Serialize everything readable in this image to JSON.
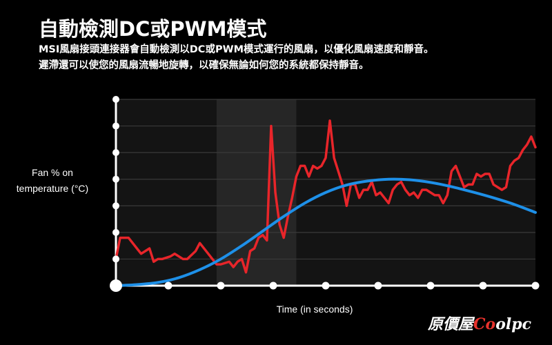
{
  "header": {
    "title": "自動檢測DC或PWM模式",
    "desc_line1": "MSI風扇接頭連接器會自動檢測以DC或PWM模式運行的風扇，以優化風扇速度和靜音。",
    "desc_line2": "遲滯還可以使您的風扇流暢地旋轉，以確保無論如何您的系統都保持靜音。"
  },
  "watermark": {
    "part1": "原價屋",
    "accent": "Co",
    "part2": "olpc"
  },
  "colors": {
    "background": "#000000",
    "temperature_line": "#e8252a",
    "fan_curve": "#1e90e8",
    "axis": "#ffffff",
    "grid": "#3a3a3a",
    "band_dark": "#141414",
    "band_light": "#262626",
    "watermark_accent": "#e8322c"
  },
  "chart_data": {
    "type": "line",
    "ylabel_line1": "Fan % on",
    "ylabel_line2": "temperature (°C)",
    "xlabel": "Time (in seconds)",
    "grid": true,
    "xlim": [
      0,
      100
    ],
    "ylim": [
      0,
      7
    ],
    "x_tick_count": 9,
    "y_tick_count": 7,
    "shaded_band_x": [
      24,
      43
    ],
    "series": [
      {
        "style": "jagged",
        "color": "#e8252a",
        "x": [
          0,
          1,
          3,
          5,
          6,
          8,
          9,
          10,
          11,
          13,
          14,
          16,
          17,
          19,
          20,
          22,
          23,
          24,
          25,
          27,
          28,
          29,
          30,
          31,
          32,
          33,
          34,
          35,
          36,
          37,
          38,
          39,
          40,
          41,
          42,
          43,
          44,
          45,
          46,
          47,
          48,
          49,
          50,
          51,
          52,
          53,
          54,
          55,
          56,
          57,
          58,
          59,
          60,
          61,
          62,
          63,
          64,
          65,
          66,
          67,
          68,
          69,
          70,
          71,
          72,
          73,
          74,
          75,
          76,
          77,
          78,
          79,
          80,
          81,
          82,
          83,
          84,
          85,
          86,
          87,
          88,
          89,
          90,
          91,
          92,
          93,
          94,
          95,
          96,
          97,
          98,
          99,
          100
        ],
        "y": [
          1.0,
          1.8,
          1.8,
          1.4,
          1.2,
          1.4,
          0.9,
          1.0,
          1.0,
          1.1,
          1.2,
          1.0,
          1.0,
          1.3,
          1.6,
          1.2,
          1.0,
          0.8,
          0.8,
          0.9,
          0.7,
          0.9,
          1.0,
          0.5,
          1.3,
          1.4,
          1.8,
          1.9,
          1.7,
          6.0,
          3.5,
          2.3,
          1.8,
          2.6,
          3.3,
          4.1,
          4.5,
          4.5,
          4.1,
          4.5,
          4.4,
          4.5,
          4.8,
          6.2,
          4.8,
          4.3,
          3.8,
          3.0,
          3.8,
          3.8,
          3.3,
          3.6,
          3.6,
          3.9,
          3.4,
          3.5,
          3.3,
          3.1,
          3.6,
          3.8,
          3.9,
          3.6,
          3.4,
          3.5,
          3.3,
          3.6,
          3.6,
          3.5,
          3.4,
          3.4,
          3.1,
          3.4,
          4.3,
          4.5,
          4.1,
          3.7,
          3.8,
          3.8,
          4.2,
          4.1,
          4.2,
          4.2,
          3.8,
          3.7,
          3.6,
          3.7,
          4.5,
          4.7,
          4.8,
          5.1,
          5.3,
          5.6,
          5.2
        ]
      },
      {
        "style": "smooth",
        "color": "#1e90e8",
        "x": [
          0,
          5,
          10,
          15,
          20,
          25,
          30,
          35,
          40,
          45,
          50,
          55,
          60,
          65,
          70,
          75,
          80,
          85,
          90,
          95,
          100
        ],
        "y": [
          0.0,
          0.04,
          0.12,
          0.3,
          0.6,
          1.0,
          1.5,
          2.05,
          2.6,
          3.1,
          3.5,
          3.78,
          3.93,
          4.0,
          3.98,
          3.88,
          3.72,
          3.52,
          3.3,
          3.05,
          2.75
        ]
      }
    ]
  }
}
